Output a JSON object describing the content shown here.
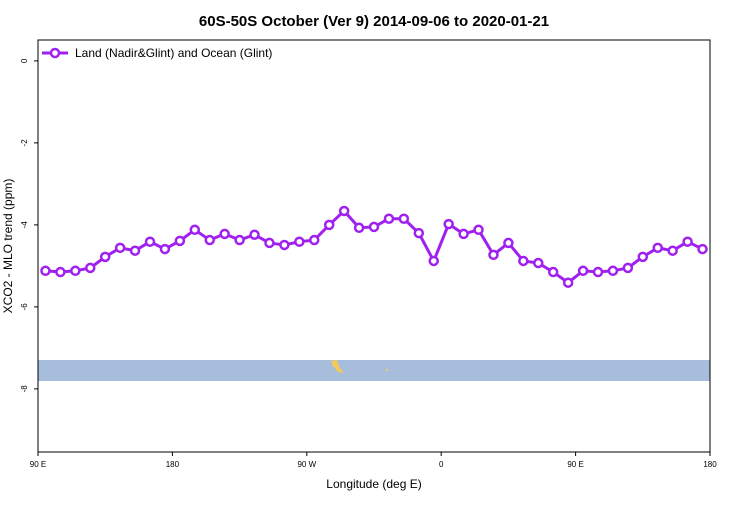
{
  "chart_data": {
    "type": "line",
    "title": "60S-50S October (Ver 9)   2014-09-06 to 2020-01-21",
    "x_label": "Longitude (deg E)",
    "y_label": "XCO2 - MLO trend (ppm)",
    "x": [
      95,
      105,
      115,
      125,
      135,
      145,
      155,
      165,
      175,
      185,
      195,
      205,
      215,
      225,
      235,
      245,
      255,
      265,
      275,
      285,
      295,
      305,
      315,
      325,
      335,
      345,
      355,
      365,
      375,
      385,
      395,
      405,
      415,
      425,
      435,
      445,
      455,
      465,
      475,
      485,
      495,
      505,
      515,
      525,
      535
    ],
    "series": [
      {
        "name": "Land (Nadir&Glint) and Ocean (Glint)",
        "color": "#a020f0",
        "values": [
          -5.12,
          -5.15,
          -5.12,
          -5.05,
          -4.78,
          -4.56,
          -4.63,
          -4.41,
          -4.59,
          -4.39,
          -4.12,
          -4.37,
          -4.22,
          -4.37,
          -4.24,
          -4.44,
          -4.49,
          -4.41,
          -4.37,
          -4.0,
          -3.66,
          -4.07,
          -4.05,
          -3.85,
          -3.85,
          -4.2,
          -4.88,
          -3.98,
          -4.22,
          -4.12,
          -4.73,
          -4.44,
          -4.88,
          -4.93,
          -5.15,
          -5.41,
          -5.12,
          -5.15,
          -5.12,
          -5.05,
          -4.78,
          -4.56,
          -4.63,
          -4.41,
          -4.59
        ]
      }
    ],
    "xlim": [
      90,
      540
    ],
    "xticks": [
      {
        "value": 90,
        "label": "90 E"
      },
      180,
      {
        "value": 270,
        "label": "90 W"
      },
      {
        "value": 360,
        "label": "0"
      },
      {
        "value": 450,
        "label": "90 E"
      },
      {
        "value": 540,
        "label": "180"
      }
    ],
    "ylim": [
      -9.54,
      0.51
    ],
    "yticks": [
      0,
      -2,
      -4,
      -6,
      -8
    ],
    "legend": "top-left"
  }
}
